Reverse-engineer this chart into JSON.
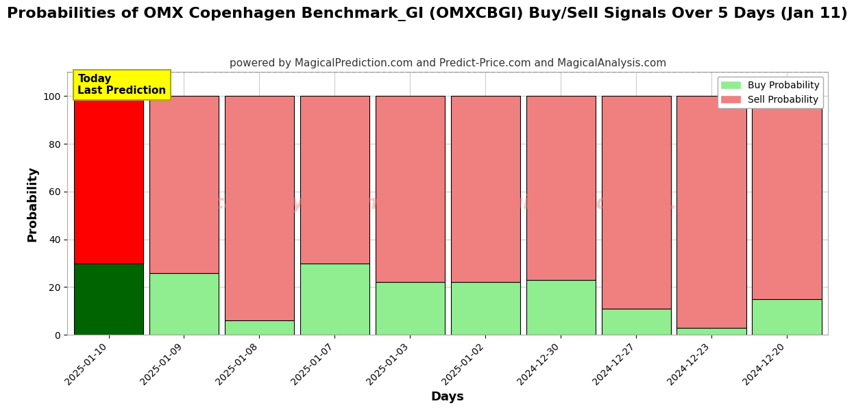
{
  "title": "Probabilities of OMX Copenhagen Benchmark_GI (OMXCBGI) Buy/Sell Signals Over 5 Days (Jan 11)",
  "subtitle": "powered by MagicalPrediction.com and Predict-Price.com and MagicalAnalysis.com",
  "xlabel": "Days",
  "ylabel": "Probability",
  "dates": [
    "2025-01-10",
    "2025-01-09",
    "2025-01-08",
    "2025-01-07",
    "2025-01-03",
    "2025-01-02",
    "2024-12-30",
    "2024-12-27",
    "2024-12-23",
    "2024-12-20"
  ],
  "buy_values": [
    30,
    26,
    6,
    30,
    22,
    22,
    23,
    11,
    3,
    15
  ],
  "sell_values": [
    70,
    74,
    94,
    70,
    78,
    78,
    77,
    89,
    97,
    85
  ],
  "today_buy_color": "#006400",
  "today_sell_color": "#ff0000",
  "buy_color": "#90ee90",
  "sell_color": "#f08080",
  "today_label_bg": "#ffff00",
  "today_label_text": "Today\nLast Prediction",
  "legend_buy": "Buy Probability",
  "legend_sell": "Sell Probability",
  "ylim": [
    0,
    110
  ],
  "dashed_line_y": 110,
  "bar_edge_color": "#000000",
  "bar_linewidth": 0.8,
  "grid_color": "#cccccc",
  "background_color": "#ffffff",
  "title_fontsize": 16,
  "subtitle_fontsize": 11,
  "axis_label_fontsize": 13,
  "tick_fontsize": 10,
  "bar_width": 0.92,
  "watermark1": "MagicalAnalysis.com",
  "watermark2": "MagicalPrediction.com",
  "watermark_color": "#f08080",
  "watermark_alpha": 0.45,
  "watermark_fontsize": 20
}
